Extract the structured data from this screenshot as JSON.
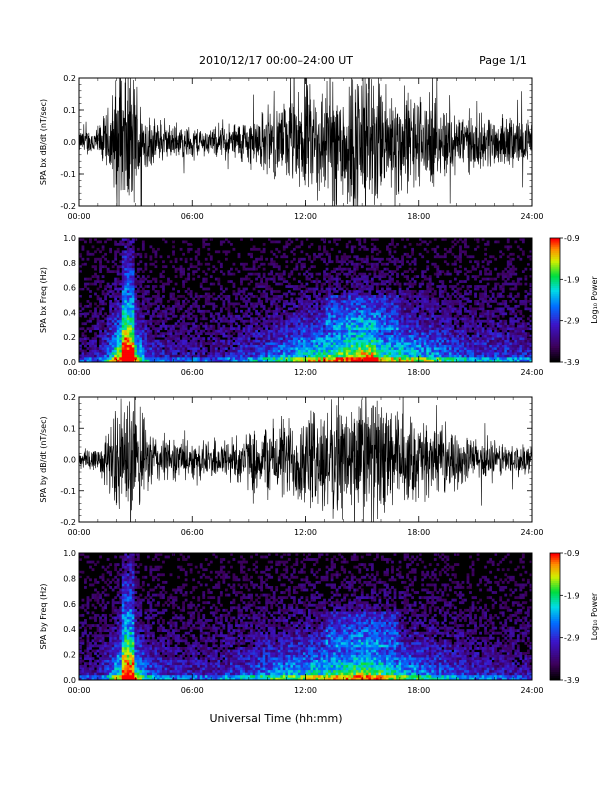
{
  "header": {
    "title": "2010/12/17  00:00–24:00 UT",
    "page": "Page 1/1"
  },
  "xlabel": "Universal Time (hh:mm)",
  "colorbar": {
    "label": "Log₁₀ Power",
    "range": [
      -3.9,
      -0.9
    ],
    "ticks": [
      "-0.9",
      "-1.9",
      "-2.9",
      "-3.9"
    ]
  },
  "chart_data": [
    {
      "type": "line",
      "id": "bx-dbdt",
      "ylabel": "SPA bx dB/dt (nT/sec)",
      "x_range_hours": [
        0,
        24
      ],
      "x_ticks": [
        "00:00",
        "06:00",
        "12:00",
        "18:00",
        "24:00"
      ],
      "ylim": [
        -0.2,
        0.2
      ],
      "y_ticks": [
        "-0.2",
        "-0.1",
        "0.0",
        "0.1",
        "0.2"
      ],
      "color": "#000000",
      "envelope": {
        "x": [
          0,
          1,
          1.5,
          2,
          2.5,
          3,
          3.5,
          4,
          5,
          6,
          7,
          8,
          9,
          10,
          11,
          12,
          13,
          14,
          15,
          15.5,
          16,
          17,
          18,
          19,
          20,
          21,
          22,
          23,
          24
        ],
        "amplitude": [
          0.04,
          0.06,
          0.12,
          0.25,
          0.3,
          0.25,
          0.12,
          0.08,
          0.06,
          0.06,
          0.05,
          0.07,
          0.09,
          0.12,
          0.15,
          0.2,
          0.22,
          0.25,
          0.3,
          0.3,
          0.22,
          0.2,
          0.18,
          0.15,
          0.12,
          0.1,
          0.1,
          0.09,
          0.08
        ]
      }
    },
    {
      "type": "heatmap",
      "id": "bx-freq",
      "ylabel": "SPA bx Freq (Hz)",
      "x_range_hours": [
        0,
        24
      ],
      "x_ticks": [
        "00:00",
        "06:00",
        "12:00",
        "18:00",
        "24:00"
      ],
      "ylim": [
        0.0,
        1.0
      ],
      "y_ticks": [
        "0.0",
        "0.2",
        "0.4",
        "0.6",
        "0.8",
        "1.0"
      ],
      "value_range": [
        -3.9,
        -0.9
      ]
    },
    {
      "type": "line",
      "id": "by-dbdt",
      "ylabel": "SPA by dB/dt (nT/sec)",
      "x_range_hours": [
        0,
        24
      ],
      "x_ticks": [
        "00:00",
        "06:00",
        "12:00",
        "18:00",
        "24:00"
      ],
      "ylim": [
        -0.2,
        0.2
      ],
      "y_ticks": [
        "-0.2",
        "-0.1",
        "0.0",
        "0.1",
        "0.2"
      ],
      "color": "#000000",
      "envelope": {
        "x": [
          0,
          1,
          1.5,
          2,
          2.5,
          3,
          3.5,
          4,
          5,
          6,
          7,
          8,
          9,
          10,
          11,
          12,
          13,
          14,
          15,
          15.5,
          16,
          17,
          18,
          19,
          20,
          21,
          22,
          23,
          24
        ],
        "amplitude": [
          0.04,
          0.06,
          0.1,
          0.2,
          0.25,
          0.22,
          0.14,
          0.1,
          0.08,
          0.07,
          0.07,
          0.09,
          0.11,
          0.14,
          0.16,
          0.18,
          0.2,
          0.22,
          0.25,
          0.25,
          0.22,
          0.18,
          0.15,
          0.12,
          0.1,
          0.08,
          0.07,
          0.06,
          0.05
        ]
      }
    },
    {
      "type": "heatmap",
      "id": "by-freq",
      "ylabel": "SPA by Freq (Hz)",
      "x_range_hours": [
        0,
        24
      ],
      "x_ticks": [
        "00:00",
        "06:00",
        "12:00",
        "18:00",
        "24:00"
      ],
      "ylim": [
        0.0,
        1.0
      ],
      "y_ticks": [
        "0.0",
        "0.2",
        "0.4",
        "0.6",
        "0.8",
        "1.0"
      ],
      "value_range": [
        -3.9,
        -0.9
      ]
    }
  ]
}
